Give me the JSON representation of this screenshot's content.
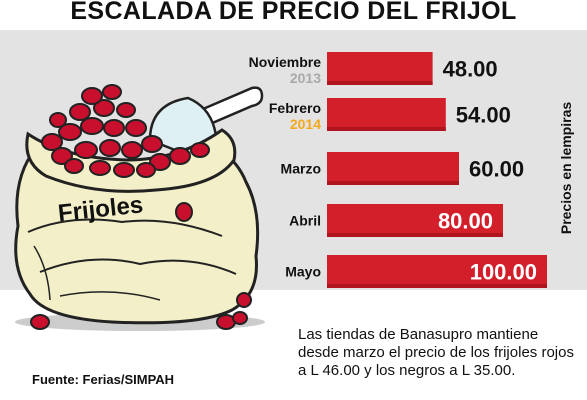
{
  "title": "ESCALADA DE PRECIO DEL FRIJOL",
  "sack_label": "Frijoles",
  "ylabel": "Precios en lempiras",
  "note": "Las tiendas de Banasupro mantiene desde marzo el precio de los frijoles rojos a L 46.00 y los negros a L 35.00.",
  "source": "Fuente: Ferias/SIMPAH",
  "colors": {
    "bar": "#d31f2a",
    "bar_dark": "#b0151f",
    "year": "#a9a9a9",
    "highlight_year": "#f3a91d",
    "panel": "#e3e3e3"
  },
  "icons": [
    "bean-sack-icon",
    "scoop-icon",
    "bean-icon"
  ],
  "chart_data": {
    "type": "bar",
    "orientation": "horizontal",
    "categories": [
      "Noviembre",
      "Febrero",
      "Marzo",
      "Abril",
      "Mayo"
    ],
    "years": [
      "2013",
      "2014",
      "",
      "",
      ""
    ],
    "values": [
      48,
      54,
      60,
      80,
      100
    ],
    "value_labels": [
      "48.00",
      "54.00",
      "60.00",
      "80.00",
      "100.00"
    ],
    "xlim": [
      0,
      100
    ],
    "grid": false,
    "legend": "none"
  }
}
